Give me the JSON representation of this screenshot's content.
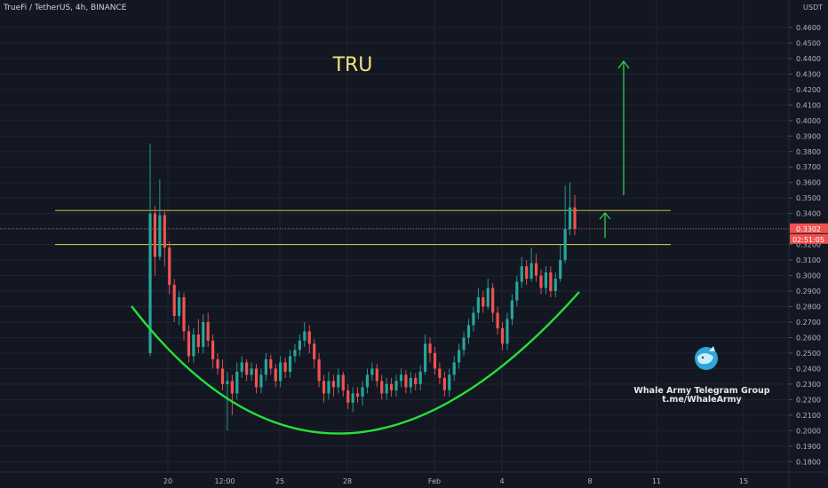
{
  "header": {
    "symbol_line": "TrueFi / TetherUS, 4h, BINANCE",
    "currency": "USDT"
  },
  "annotation": {
    "title": "TRU",
    "branding_line1": "Whale Army Telegram Group",
    "branding_line2": "t.me/WhaleArmy"
  },
  "colors": {
    "background": "#131722",
    "grid": "#1f2433",
    "up": "#26a69a",
    "down": "#ef5350",
    "level": "#d8d84a",
    "arc": "#26e03a",
    "arrow": "#2fd04a",
    "title": "#f4e27a",
    "price_tag": "#ef5350"
  },
  "chart_data": {
    "type": "candlestick",
    "x_ticks": [
      "20",
      "12:00",
      "25",
      "28",
      "Feb",
      "4",
      "8",
      "11",
      "15"
    ],
    "y_ticks": [
      0.18,
      0.19,
      0.2,
      0.21,
      0.22,
      0.23,
      0.24,
      0.25,
      0.26,
      0.27,
      0.28,
      0.29,
      0.3,
      0.31,
      0.32,
      0.33,
      0.34,
      0.35,
      0.36,
      0.37,
      0.38,
      0.39,
      0.4,
      0.41,
      0.42,
      0.43,
      0.44,
      0.45,
      0.46
    ],
    "y_labels": [
      "0.1800",
      "0.1900",
      "0.2000",
      "0.2100",
      "0.2200",
      "0.2300",
      "0.2400",
      "0.2500",
      "0.2600",
      "0.2700",
      "0.2800",
      "0.2900",
      "0.3000",
      "0.3100",
      "0.3200",
      "0.3300",
      "0.3400",
      "0.3500",
      "0.3600",
      "0.3700",
      "0.3800",
      "0.3900",
      "0.4000",
      "0.4100",
      "0.4200",
      "0.4300",
      "0.4400",
      "0.4500",
      "0.4600"
    ],
    "ylim": [
      0.175,
      0.468
    ],
    "horizontal_levels": [
      0.342,
      0.32
    ],
    "current_price": {
      "value": 0.3302,
      "label": "0.3302",
      "countdown": "02:51:05"
    },
    "hidden_axis_label": "0.3200",
    "candles": [
      [
        0.25,
        0.34,
        0.385,
        0.248
      ],
      [
        0.34,
        0.312,
        0.345,
        0.3
      ],
      [
        0.312,
        0.339,
        0.362,
        0.31
      ],
      [
        0.339,
        0.318,
        0.342,
        0.306
      ],
      [
        0.318,
        0.294,
        0.322,
        0.288
      ],
      [
        0.294,
        0.274,
        0.298,
        0.27
      ],
      [
        0.274,
        0.286,
        0.29,
        0.268
      ],
      [
        0.286,
        0.264,
        0.289,
        0.258
      ],
      [
        0.264,
        0.248,
        0.268,
        0.244
      ],
      [
        0.248,
        0.262,
        0.266,
        0.244
      ],
      [
        0.262,
        0.254,
        0.272,
        0.25
      ],
      [
        0.254,
        0.27,
        0.275,
        0.25
      ],
      [
        0.27,
        0.258,
        0.276,
        0.254
      ],
      [
        0.258,
        0.246,
        0.262,
        0.24
      ],
      [
        0.246,
        0.24,
        0.25,
        0.236
      ],
      [
        0.24,
        0.23,
        0.246,
        0.226
      ],
      [
        0.23,
        0.232,
        0.238,
        0.2
      ],
      [
        0.232,
        0.224,
        0.236,
        0.21
      ],
      [
        0.224,
        0.238,
        0.244,
        0.22
      ],
      [
        0.238,
        0.244,
        0.248,
        0.234
      ],
      [
        0.244,
        0.236,
        0.246,
        0.232
      ],
      [
        0.236,
        0.24,
        0.244,
        0.232
      ],
      [
        0.24,
        0.228,
        0.243,
        0.224
      ],
      [
        0.228,
        0.236,
        0.24,
        0.224
      ],
      [
        0.236,
        0.246,
        0.25,
        0.232
      ],
      [
        0.246,
        0.24,
        0.249,
        0.236
      ],
      [
        0.24,
        0.232,
        0.243,
        0.228
      ],
      [
        0.232,
        0.244,
        0.248,
        0.228
      ],
      [
        0.244,
        0.238,
        0.247,
        0.234
      ],
      [
        0.238,
        0.248,
        0.252,
        0.234
      ],
      [
        0.248,
        0.252,
        0.256,
        0.244
      ],
      [
        0.252,
        0.258,
        0.262,
        0.248
      ],
      [
        0.258,
        0.264,
        0.27,
        0.254
      ],
      [
        0.264,
        0.256,
        0.268,
        0.25
      ],
      [
        0.256,
        0.246,
        0.259,
        0.24
      ],
      [
        0.246,
        0.232,
        0.25,
        0.228
      ],
      [
        0.232,
        0.224,
        0.236,
        0.218
      ],
      [
        0.224,
        0.232,
        0.238,
        0.22
      ],
      [
        0.232,
        0.228,
        0.236,
        0.222
      ],
      [
        0.228,
        0.236,
        0.24,
        0.224
      ],
      [
        0.236,
        0.226,
        0.238,
        0.222
      ],
      [
        0.226,
        0.218,
        0.23,
        0.214
      ],
      [
        0.218,
        0.224,
        0.228,
        0.212
      ],
      [
        0.224,
        0.222,
        0.228,
        0.218
      ],
      [
        0.222,
        0.228,
        0.232,
        0.216
      ],
      [
        0.228,
        0.236,
        0.24,
        0.224
      ],
      [
        0.236,
        0.24,
        0.244,
        0.232
      ],
      [
        0.24,
        0.232,
        0.243,
        0.228
      ],
      [
        0.232,
        0.224,
        0.236,
        0.22
      ],
      [
        0.224,
        0.23,
        0.234,
        0.22
      ],
      [
        0.23,
        0.226,
        0.234,
        0.222
      ],
      [
        0.226,
        0.232,
        0.236,
        0.222
      ],
      [
        0.232,
        0.236,
        0.24,
        0.228
      ],
      [
        0.236,
        0.228,
        0.239,
        0.224
      ],
      [
        0.228,
        0.234,
        0.238,
        0.224
      ],
      [
        0.234,
        0.23,
        0.237,
        0.226
      ],
      [
        0.23,
        0.238,
        0.242,
        0.226
      ],
      [
        0.238,
        0.256,
        0.262,
        0.236
      ],
      [
        0.256,
        0.25,
        0.26,
        0.244
      ],
      [
        0.25,
        0.24,
        0.254,
        0.236
      ],
      [
        0.24,
        0.234,
        0.244,
        0.23
      ],
      [
        0.234,
        0.226,
        0.238,
        0.222
      ],
      [
        0.226,
        0.236,
        0.24,
        0.222
      ],
      [
        0.236,
        0.244,
        0.248,
        0.232
      ],
      [
        0.244,
        0.252,
        0.256,
        0.24
      ],
      [
        0.252,
        0.26,
        0.264,
        0.248
      ],
      [
        0.26,
        0.268,
        0.272,
        0.256
      ],
      [
        0.268,
        0.276,
        0.28,
        0.264
      ],
      [
        0.276,
        0.286,
        0.292,
        0.272
      ],
      [
        0.286,
        0.28,
        0.29,
        0.276
      ],
      [
        0.28,
        0.292,
        0.298,
        0.278
      ],
      [
        0.292,
        0.276,
        0.295,
        0.27
      ],
      [
        0.276,
        0.266,
        0.28,
        0.262
      ],
      [
        0.266,
        0.256,
        0.27,
        0.252
      ],
      [
        0.256,
        0.272,
        0.276,
        0.252
      ],
      [
        0.272,
        0.284,
        0.288,
        0.268
      ],
      [
        0.284,
        0.296,
        0.3,
        0.28
      ],
      [
        0.296,
        0.306,
        0.312,
        0.292
      ],
      [
        0.306,
        0.298,
        0.31,
        0.294
      ],
      [
        0.298,
        0.308,
        0.318,
        0.296
      ],
      [
        0.308,
        0.3,
        0.314,
        0.296
      ],
      [
        0.3,
        0.292,
        0.304,
        0.288
      ],
      [
        0.292,
        0.302,
        0.306,
        0.288
      ],
      [
        0.302,
        0.29,
        0.306,
        0.286
      ],
      [
        0.29,
        0.298,
        0.302,
        0.286
      ],
      [
        0.298,
        0.31,
        0.32,
        0.296
      ],
      [
        0.31,
        0.33,
        0.358,
        0.308
      ],
      [
        0.33,
        0.344,
        0.36,
        0.326
      ],
      [
        0.344,
        0.3302,
        0.352,
        0.326
      ]
    ]
  }
}
